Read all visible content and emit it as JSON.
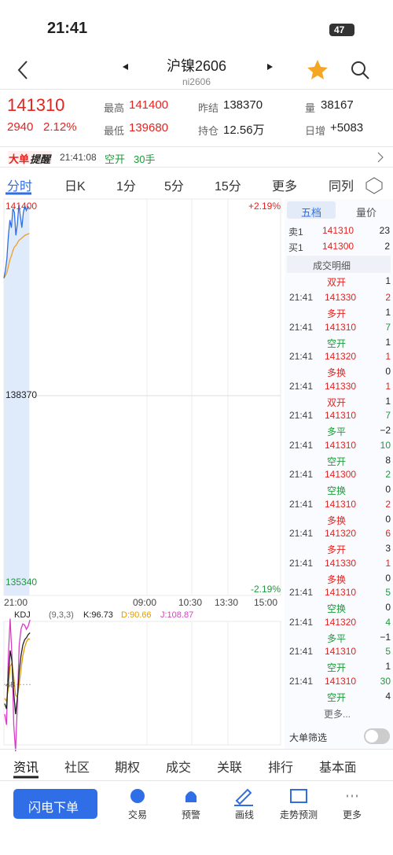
{
  "status": {
    "time": "21:41",
    "battery": "47"
  },
  "header": {
    "title": "沪镍2606",
    "code": "ni2606"
  },
  "quote": {
    "price": "141310",
    "change": "2940",
    "change_pct": "2.12%",
    "stats": [
      {
        "label": "最高",
        "value": "141400",
        "color": "r"
      },
      {
        "label": "昨结",
        "value": "138370"
      },
      {
        "label": "量",
        "value": "38167"
      },
      {
        "label": "最低",
        "value": "139680",
        "color": "r"
      },
      {
        "label": "持仓",
        "value": "12.56万"
      },
      {
        "label": "日增",
        "value": "+5083"
      }
    ]
  },
  "alert": {
    "badge": "大单",
    "badge2": "提醒",
    "time": "21:41:08",
    "action": "空开",
    "size": "30手"
  },
  "tabs": [
    "分时",
    "日K",
    "1分",
    "5分",
    "15分",
    "更多",
    "同列"
  ],
  "chart": {
    "ylim": [
      135340,
      141400
    ],
    "yticks": [
      141400,
      138370,
      135340
    ],
    "pct": [
      "+2.19%",
      "-2.19%"
    ],
    "times": [
      "21:00",
      "09:00",
      "10:30",
      "13:30",
      "15:00"
    ],
    "price": [
      140210,
      140330,
      140520,
      140880,
      141120,
      141000,
      141300,
      141240,
      140880,
      141060,
      141360,
      141180,
      141000,
      141240,
      141340,
      141270,
      141330,
      141310
    ],
    "avg": [
      140210,
      140250,
      140300,
      140400,
      140500,
      140560,
      140640,
      140700,
      140720,
      140760,
      140800,
      140820,
      140840,
      140860,
      140880,
      140890,
      140900,
      140910
    ]
  },
  "kdj": {
    "name": "KDJ",
    "params": "(9,3,3)",
    "K": "K:96.73",
    "D": "D:90.66",
    "J": "J:108.87",
    "level": "48",
    "k": [
      30,
      25,
      55,
      80,
      70,
      40,
      20,
      35,
      60,
      75,
      85,
      90,
      92,
      95,
      96.73
    ],
    "d": [
      35,
      32,
      45,
      65,
      68,
      55,
      38,
      36,
      48,
      62,
      75,
      83,
      88,
      91,
      90.66
    ],
    "j": [
      20,
      10,
      75,
      110,
      75,
      10,
      -15,
      30,
      85,
      100,
      105,
      104,
      100,
      103,
      108.87
    ]
  },
  "book": {
    "tabs": [
      "五档",
      "量价"
    ],
    "rows": [
      [
        "卖1",
        "141310",
        "23"
      ],
      [
        "买1",
        "141300",
        "2"
      ]
    ]
  },
  "trades": {
    "title": "成交明细",
    "more": "更多...",
    "filter": "大单筛选",
    "rows": [
      {
        "type": "双开",
        "oi": "1",
        "tc": "r"
      },
      {
        "time": "21:41",
        "price": "141330",
        "vol": "2",
        "c": "r",
        "type": "多开",
        "oi": "1",
        "tc": "r"
      },
      {
        "time": "21:41",
        "price": "141310",
        "vol": "7",
        "c": "g",
        "type": "空开",
        "oi": "1",
        "tc": "g"
      },
      {
        "time": "21:41",
        "price": "141320",
        "vol": "1",
        "c": "r",
        "type": "多换",
        "oi": "0",
        "tc": "r"
      },
      {
        "time": "21:41",
        "price": "141330",
        "vol": "1",
        "c": "r",
        "type": "双开",
        "oi": "1",
        "tc": "r"
      },
      {
        "time": "21:41",
        "price": "141310",
        "vol": "7",
        "c": "g",
        "type": "多平",
        "oi": "−2",
        "tc": "g"
      },
      {
        "time": "21:41",
        "price": "141310",
        "vol": "10",
        "c": "g",
        "type": "空开",
        "oi": "8",
        "tc": "g"
      },
      {
        "time": "21:41",
        "price": "141300",
        "vol": "2",
        "c": "g",
        "type": "空换",
        "oi": "0",
        "tc": "g"
      },
      {
        "time": "21:41",
        "price": "141310",
        "vol": "2",
        "c": "r",
        "type": "多换",
        "oi": "0",
        "tc": "r"
      },
      {
        "time": "21:41",
        "price": "141320",
        "vol": "6",
        "c": "r",
        "type": "多开",
        "oi": "3",
        "tc": "r"
      },
      {
        "time": "21:41",
        "price": "141330",
        "vol": "1",
        "c": "r",
        "type": "多换",
        "oi": "0",
        "tc": "r"
      },
      {
        "time": "21:41",
        "price": "141310",
        "vol": "5",
        "c": "g",
        "type": "空换",
        "oi": "0",
        "tc": "g"
      },
      {
        "time": "21:41",
        "price": "141320",
        "vol": "4",
        "c": "g",
        "type": "多平",
        "oi": "−1",
        "tc": "g"
      },
      {
        "time": "21:41",
        "price": "141310",
        "vol": "5",
        "c": "g",
        "type": "空开",
        "oi": "1",
        "tc": "g"
      },
      {
        "time": "21:41",
        "price": "141310",
        "vol": "30",
        "c": "g",
        "type": "空开",
        "oi": "4",
        "tc": "g"
      }
    ]
  },
  "bottom_tabs": [
    "资讯",
    "社区",
    "期权",
    "成交",
    "关联",
    "排行",
    "基本面"
  ],
  "nav": {
    "button": "闪电下单",
    "items": [
      "交易",
      "预警",
      "画线",
      "走势预测",
      "更多"
    ]
  },
  "colors": {
    "r": "#e3231f",
    "g": "#1c9a3a"
  }
}
